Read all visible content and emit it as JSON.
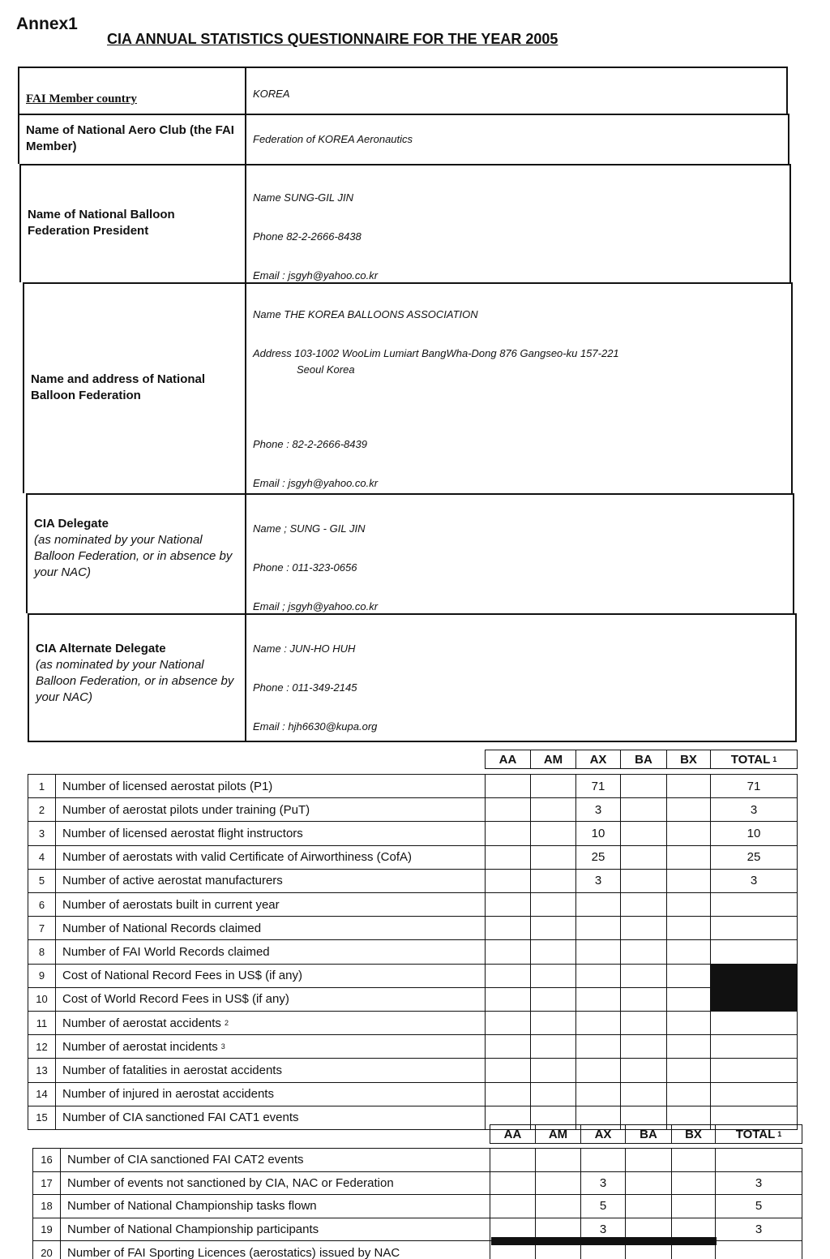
{
  "annex": "Annex1",
  "title": "CIA ANNUAL STATISTICS QUESTIONNAIRE FOR THE YEAR 2005",
  "info": [
    {
      "label": "FAI Member country",
      "lines": [
        "KOREA"
      ]
    },
    {
      "label": "Name of National Aero Club (the FAI Member)",
      "lines": [
        "Federation of KOREA  Aeronautics"
      ]
    },
    {
      "label": "Name of National Balloon Federation President",
      "lines": [
        "Name   SUNG-GIL   JIN",
        "Phone 82-2-2666-8438",
        "Email : jsgyh@yahoo.co.kr"
      ]
    },
    {
      "label": "Name and address of National Balloon Federation",
      "lines": [
        "Name   THE  KOREA BALLOONS ASSOCIATION",
        "Address  103-1002 WooLim Lumiart BangWha-Dong 876 Gangseo-ku   157-221",
        "Seoul   Korea",
        "Phone : 82-2-2666-8439",
        "Email : jsgyh@yahoo.co.kr"
      ]
    },
    {
      "label": "CIA Delegate",
      "sublabel": "(as nominated by your National Balloon Federation, or in absence by your NAC)",
      "lines": [
        "Name ; SUNG - GIL    JIN",
        "Phone  :  011-323-0656",
        "Email  ; jsgyh@yahoo.co.kr"
      ]
    },
    {
      "label": "CIA Alternate Delegate",
      "sublabel": "(as nominated by your National Balloon Federation, or in absence by your NAC)",
      "lines": [
        "Name :  JUN-HO   HUH",
        "Phone : 011-349-2145",
        "Email :    hjh6630@kupa.org"
      ]
    }
  ],
  "columns": [
    "AA",
    "AM",
    "AX",
    "BA",
    "BX",
    "TOTAL"
  ],
  "total_footnote": "1",
  "rows": [
    {
      "n": "1",
      "label": "Number of licensed aerostat pilots (P1)",
      "AX": "71",
      "TOTAL": "71"
    },
    {
      "n": "2",
      "label": "Number of aerostat pilots under training (PuT)",
      "AX": "3",
      "TOTAL": "3"
    },
    {
      "n": "3",
      "label": "Number of licensed aerostat flight instructors",
      "AX": "10",
      "TOTAL": "10"
    },
    {
      "n": "4",
      "label": "Number of aerostats with valid Certificate of Airworthiness (CofA)",
      "AX": "25",
      "TOTAL": "25"
    },
    {
      "n": "5",
      "label": "Number of active aerostat manufacturers",
      "AX": "3",
      "TOTAL": "3"
    },
    {
      "n": "6",
      "label": "Number of aerostats built in current year"
    },
    {
      "n": "7",
      "label": "Number of National Records claimed"
    },
    {
      "n": "8",
      "label": "Number of FAI World Records claimed"
    },
    {
      "n": "9",
      "label": "Cost of National Record Fees in US$ (if any)",
      "blackTotal": true
    },
    {
      "n": "10",
      "label": "Cost of World Record Fees in US$ (if any)",
      "blackTotal": true
    },
    {
      "n": "11",
      "label": "Number of aerostat accidents",
      "sup": "2"
    },
    {
      "n": "12",
      "label": "Number of aerostat incidents",
      "sup": "3"
    },
    {
      "n": "13",
      "label": "Number of fatalities in aerostat accidents"
    },
    {
      "n": "14",
      "label": "Number of injured in aerostat accidents"
    },
    {
      "n": "15",
      "label": "Number of CIA sanctioned FAI CAT1 events"
    }
  ],
  "rows2": [
    {
      "n": "16",
      "label": "Number of CIA sanctioned FAI CAT2 events"
    },
    {
      "n": "17",
      "label": "Number of events not sanctioned by CIA, NAC or Federation",
      "AX": "3",
      "TOTAL": "3"
    },
    {
      "n": "18",
      "label": "Number of National Championship tasks flown",
      "AX": "5",
      "TOTAL": "5"
    },
    {
      "n": "19",
      "label": "Number of National Championship participants",
      "AX": "3",
      "TOTAL": "3"
    },
    {
      "n": "20",
      "label": "Number of FAI Sporting Licences (aerostatics) issued by NAC"
    }
  ]
}
